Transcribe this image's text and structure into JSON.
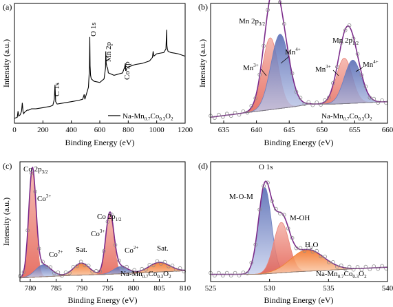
{
  "figure": {
    "panels": [
      "(a)",
      "(b)",
      "(c)",
      "(d)"
    ]
  },
  "chart_data": [
    {
      "type": "line",
      "panel": "(a)",
      "xlabel": "Binding Energy (eV)",
      "ylabel": "Intensity (a.u.)",
      "xlim": [
        0,
        1200
      ],
      "xticks": [
        0,
        200,
        400,
        600,
        800,
        1000,
        1200
      ],
      "ylim": [
        0,
        1
      ],
      "series": [
        {
          "name": "Na-Mn0.7Co0.3O2",
          "color": "#000000",
          "x": [
            0,
            20,
            25,
            30,
            40,
            50,
            55,
            60,
            65,
            70,
            80,
            90,
            100,
            120,
            150,
            200,
            250,
            270,
            280,
            285,
            290,
            300,
            350,
            400,
            450,
            480,
            490,
            495,
            500,
            505,
            510,
            520,
            527,
            530,
            532,
            535,
            540,
            560,
            600,
            630,
            640,
            642,
            645,
            650,
            655,
            660,
            700,
            760,
            775,
            780,
            782,
            785,
            790,
            800,
            850,
            900,
            950,
            970,
            975,
            980,
            990,
            1000,
            1050,
            1065,
            1070,
            1072,
            1075,
            1080,
            1100,
            1150,
            1200
          ],
          "y": [
            0.04,
            0.05,
            0.1,
            0.06,
            0.07,
            0.1,
            0.17,
            0.1,
            0.08,
            0.09,
            0.1,
            0.11,
            0.11,
            0.12,
            0.12,
            0.13,
            0.14,
            0.15,
            0.2,
            0.32,
            0.18,
            0.16,
            0.17,
            0.18,
            0.19,
            0.2,
            0.24,
            0.2,
            0.22,
            0.24,
            0.26,
            0.3,
            0.45,
            0.72,
            0.48,
            0.4,
            0.37,
            0.35,
            0.34,
            0.37,
            0.46,
            0.6,
            0.5,
            0.47,
            0.46,
            0.42,
            0.4,
            0.42,
            0.47,
            0.5,
            0.44,
            0.44,
            0.46,
            0.47,
            0.49,
            0.5,
            0.52,
            0.55,
            0.6,
            0.56,
            0.57,
            0.58,
            0.59,
            0.62,
            0.78,
            0.65,
            0.62,
            0.6,
            0.59,
            0.58,
            0.56
          ]
        }
      ],
      "annotations": [
        {
          "text": "C 1s",
          "x": 285
        },
        {
          "text": "O 1s",
          "x": 530
        },
        {
          "text": "Mn 2p",
          "x": 642
        },
        {
          "text": "Co 2p",
          "x": 780
        }
      ],
      "legend": {
        "text": "Na-Mn",
        "sub1": "0.7",
        "mid": "Co",
        "sub2": "0.3",
        "end": "O",
        "sub3": "2",
        "placement": "bottom-right"
      }
    },
    {
      "type": "area",
      "panel": "(b)",
      "xlabel": "Binding Energy (eV)",
      "ylabel": "Intensity (a.u.)",
      "xlim": [
        633,
        660
      ],
      "xticks": [
        635,
        640,
        645,
        650,
        655,
        660
      ],
      "ylim": [
        0,
        1
      ],
      "baseline": {
        "x": [
          633,
          646,
          648,
          652,
          660
        ],
        "y": [
          0.05,
          0.14,
          0.16,
          0.16,
          0.18
        ]
      },
      "peaks": [
        {
          "label": "Mn3+",
          "center": 642.1,
          "height": 0.6,
          "width": 1.2,
          "color": "#e8837a"
        },
        {
          "label": "Mn4+",
          "center": 643.6,
          "height": 0.62,
          "width": 1.4,
          "color": "#6a7fc0"
        },
        {
          "label": "Mn3+",
          "center": 653.4,
          "height": 0.38,
          "width": 1.2,
          "color": "#e8837a"
        },
        {
          "label": "Mn4+",
          "center": 654.7,
          "height": 0.36,
          "width": 1.3,
          "color": "#6a7fc0"
        }
      ],
      "annotations": [
        {
          "text": "Mn 2p",
          "sub": "3/2"
        },
        {
          "text": "Mn",
          "sup": "4+"
        },
        {
          "text": "Mn",
          "sup": "3+"
        },
        {
          "text": "Mn 2p",
          "sub": "1/2"
        },
        {
          "text": "Mn",
          "sup": "3+"
        },
        {
          "text": "Mn",
          "sup": "4+"
        }
      ],
      "legend": {
        "placement": "bottom-right"
      }
    },
    {
      "type": "area",
      "panel": "(c)",
      "xlabel": "Binding Energy (eV)",
      "ylabel": "Intensity (a.u.)",
      "xlim": [
        778,
        810
      ],
      "xticks": [
        780,
        785,
        790,
        795,
        800,
        805,
        810
      ],
      "ylim": [
        0,
        1
      ],
      "baseline": {
        "x": [
          778,
          787,
          795,
          810
        ],
        "y": [
          0.03,
          0.05,
          0.06,
          0.09
        ]
      },
      "peaks": [
        {
          "label": "Co3+",
          "center": 780.4,
          "height": 0.88,
          "width": 0.7,
          "color": "#e8837a"
        },
        {
          "label": "Co2+",
          "center": 782.5,
          "height": 0.1,
          "width": 1.5,
          "color": "#6a7fc0"
        },
        {
          "label": "Sat.",
          "center": 789.9,
          "height": 0.1,
          "width": 1.5,
          "color": "#f08030"
        },
        {
          "label": "Co3+",
          "center": 795.4,
          "height": 0.5,
          "width": 0.8,
          "color": "#e8837a"
        },
        {
          "label": "Co2+",
          "center": 797.5,
          "height": 0.06,
          "width": 1.4,
          "color": "#6a7fc0"
        },
        {
          "label": "Sat.",
          "center": 805.0,
          "height": 0.08,
          "width": 2.0,
          "color": "#f08030"
        }
      ],
      "annotations": [
        {
          "text": "Co 2p",
          "sub": "3/2"
        },
        {
          "text": "Co",
          "sup": "3+"
        },
        {
          "text": "Co",
          "sup": "2+"
        },
        {
          "text": "Sat."
        },
        {
          "text": "Co 2p",
          "sub": "1/2"
        },
        {
          "text": "Co",
          "sup": "3+"
        },
        {
          "text": "Co",
          "sup": "2+"
        },
        {
          "text": "Sat."
        }
      ],
      "legend": {
        "placement": "bottom-right"
      }
    },
    {
      "type": "area",
      "panel": "(d)",
      "xlabel": "Binding Energy (eV)",
      "xlim": [
        525,
        540
      ],
      "xticks": [
        525,
        530,
        535,
        540
      ],
      "ylim": [
        0,
        1
      ],
      "baseline": {
        "x": [
          525,
          529,
          532,
          540
        ],
        "y": [
          0.06,
          0.06,
          0.08,
          0.12
        ]
      },
      "peaks": [
        {
          "label": "M-O-M",
          "center": 529.6,
          "height": 0.72,
          "width": 0.55,
          "color": "#6a7fc0"
        },
        {
          "label": "M-OH",
          "center": 531.0,
          "height": 0.42,
          "width": 0.65,
          "color": "#e8837a"
        },
        {
          "label": "H2O",
          "center": 533.2,
          "height": 0.18,
          "width": 1.4,
          "color": "#f08030"
        }
      ],
      "annotations": [
        {
          "text": "O 1s"
        },
        {
          "text": "M-O-M"
        },
        {
          "text": "M-OH"
        },
        {
          "text": "H",
          "sub": "2",
          "end": "O"
        }
      ],
      "legend": {
        "placement": "bottom-right"
      }
    }
  ]
}
